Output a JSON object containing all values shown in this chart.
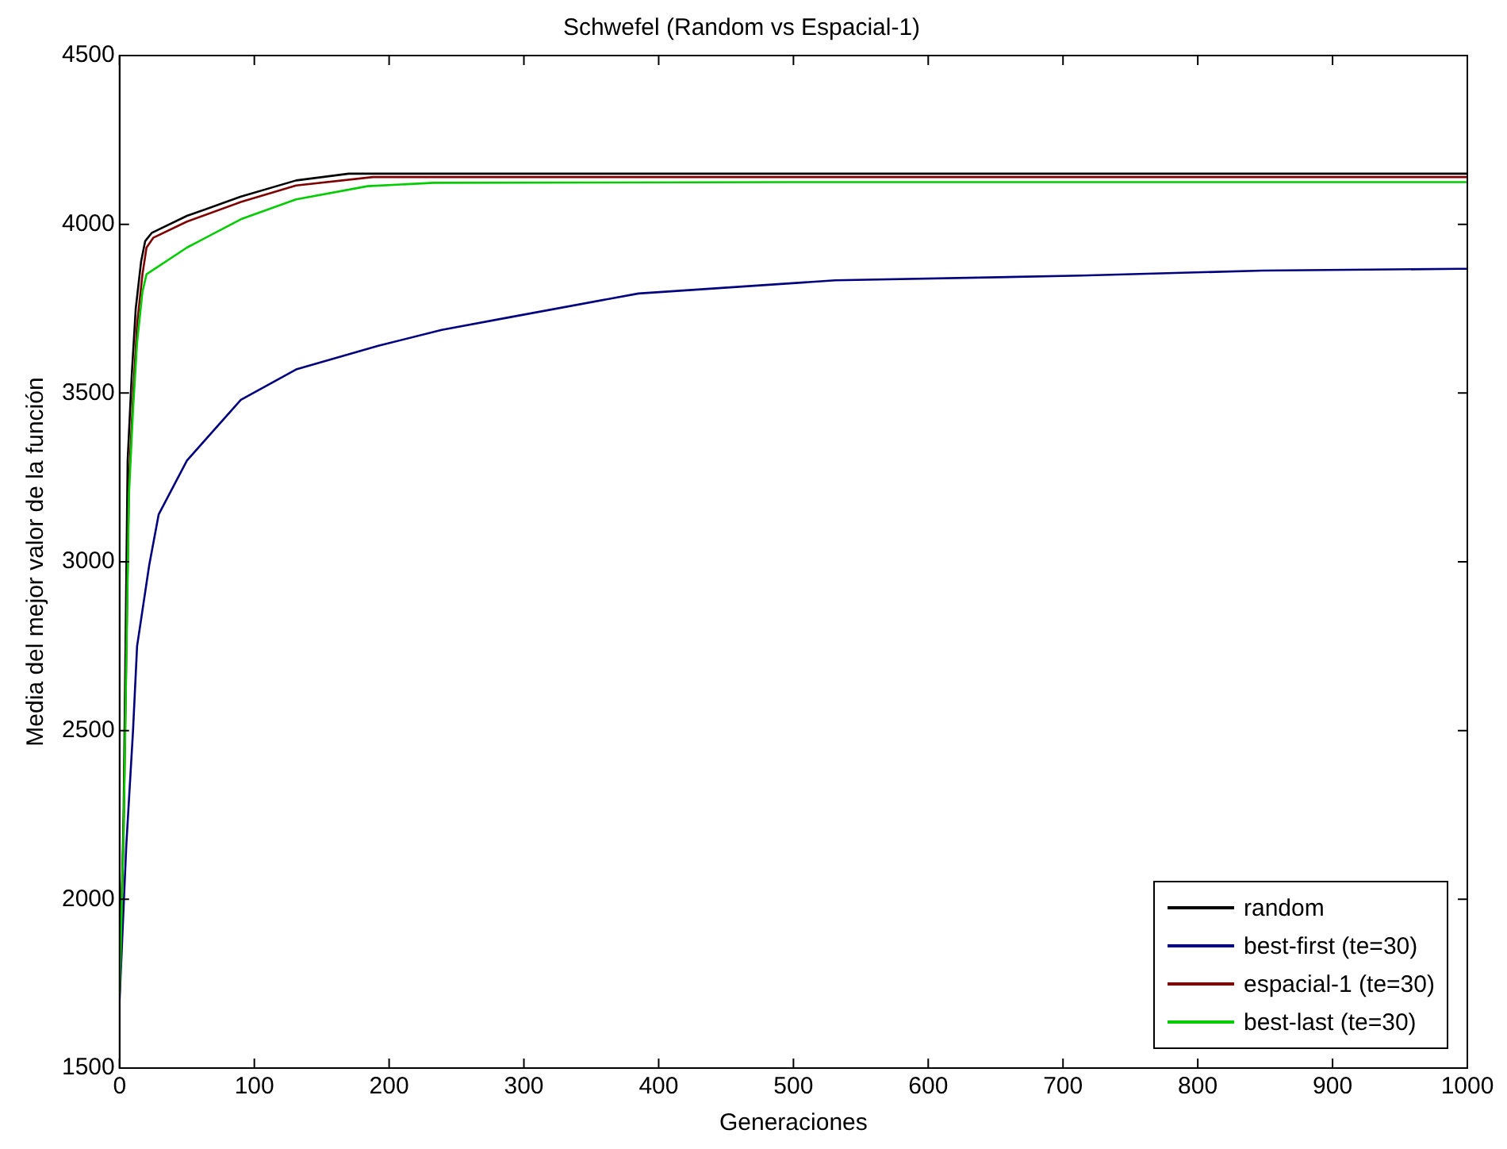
{
  "chart_data": {
    "type": "line",
    "title": "Schwefel (Random vs Espacial-1)",
    "xlabel": "Generaciones",
    "ylabel": "Media del mejor valor de la función",
    "xlim": [
      0,
      1000
    ],
    "xticks": [
      0,
      100,
      200,
      300,
      400,
      500,
      600,
      700,
      800,
      900,
      1000
    ],
    "ylim": [
      1500,
      4500
    ],
    "yticks": [
      1500,
      2000,
      2500,
      3000,
      3500,
      4000,
      4500
    ],
    "grid": false,
    "legend": "bottom right",
    "marker": "none",
    "line_style": "solid",
    "series": [
      {
        "name": "random",
        "color": "#000000",
        "x": [
          0,
          3,
          6,
          9,
          12,
          16,
          19,
          24,
          50,
          90,
          131,
          170,
          300,
          500,
          1000
        ],
        "values": [
          1720,
          2250,
          3300,
          3550,
          3750,
          3890,
          3950,
          3975,
          4025,
          4082,
          4130,
          4150,
          4150,
          4150,
          4150
        ]
      },
      {
        "name": "best-first (te=30)",
        "color": "#00007f",
        "x": [
          0,
          5,
          10,
          13,
          22,
          29,
          50,
          90,
          131,
          192,
          239,
          290,
          385,
          531,
          714,
          848,
          994,
          1000
        ],
        "values": [
          1700,
          2160,
          2500,
          2750,
          2990,
          3140,
          3300,
          3480,
          3570,
          3640,
          3687,
          3725,
          3795,
          3834,
          3848,
          3863,
          3868,
          3868
        ]
      },
      {
        "name": "espacial-1 (te=30)",
        "color": "#7f0000",
        "x": [
          0,
          3,
          7,
          10,
          13,
          17,
          20,
          25,
          50,
          90,
          131,
          188,
          300,
          500,
          1000
        ],
        "values": [
          1720,
          2200,
          3241,
          3488,
          3704,
          3852,
          3931,
          3960,
          4008,
          4066,
          4115,
          4140,
          4140,
          4140,
          4140
        ]
      },
      {
        "name": "best-last (te=30)",
        "color": "#00cc00",
        "x": [
          0,
          3,
          7,
          10,
          13,
          17,
          20,
          50,
          90,
          131,
          184,
          233,
          500,
          1000
        ],
        "values": [
          1720,
          2200,
          3200,
          3450,
          3650,
          3800,
          3852,
          3931,
          4015,
          4074,
          4113,
          4123,
          4125,
          4125
        ]
      }
    ]
  }
}
